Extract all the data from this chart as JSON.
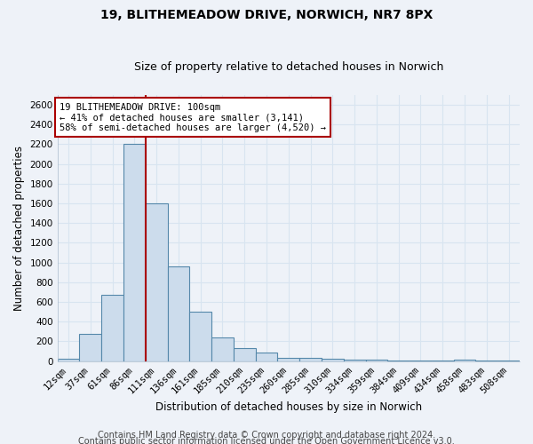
{
  "title": "19, BLITHEMEADOW DRIVE, NORWICH, NR7 8PX",
  "subtitle": "Size of property relative to detached houses in Norwich",
  "xlabel": "Distribution of detached houses by size in Norwich",
  "ylabel": "Number of detached properties",
  "categories": [
    "12sqm",
    "37sqm",
    "61sqm",
    "86sqm",
    "111sqm",
    "136sqm",
    "161sqm",
    "185sqm",
    "210sqm",
    "235sqm",
    "260sqm",
    "285sqm",
    "310sqm",
    "334sqm",
    "359sqm",
    "384sqm",
    "409sqm",
    "434sqm",
    "458sqm",
    "483sqm",
    "508sqm"
  ],
  "values": [
    20,
    280,
    670,
    2200,
    1600,
    960,
    500,
    240,
    130,
    90,
    35,
    35,
    20,
    15,
    10,
    5,
    5,
    5,
    10,
    5,
    5
  ],
  "bar_color": "#ccdcec",
  "bar_edge_color": "#5588aa",
  "vline_x_index": 3,
  "vline_color": "#aa0000",
  "annotation_line1": "19 BLITHEMEADOW DRIVE: 100sqm",
  "annotation_line2": "← 41% of detached houses are smaller (3,141)",
  "annotation_line3": "58% of semi-detached houses are larger (4,520) →",
  "annotation_box_color": "white",
  "annotation_box_edge": "#aa0000",
  "ylim": [
    0,
    2700
  ],
  "yticks": [
    0,
    200,
    400,
    600,
    800,
    1000,
    1200,
    1400,
    1600,
    1800,
    2000,
    2200,
    2400,
    2600
  ],
  "footer1": "Contains HM Land Registry data © Crown copyright and database right 2024.",
  "footer2": "Contains public sector information licensed under the Open Government Licence v3.0.",
  "background_color": "#eef2f8",
  "grid_color": "#d8e4f0",
  "title_fontsize": 10,
  "subtitle_fontsize": 9,
  "axis_label_fontsize": 8.5,
  "tick_fontsize": 7.5,
  "footer_fontsize": 7
}
